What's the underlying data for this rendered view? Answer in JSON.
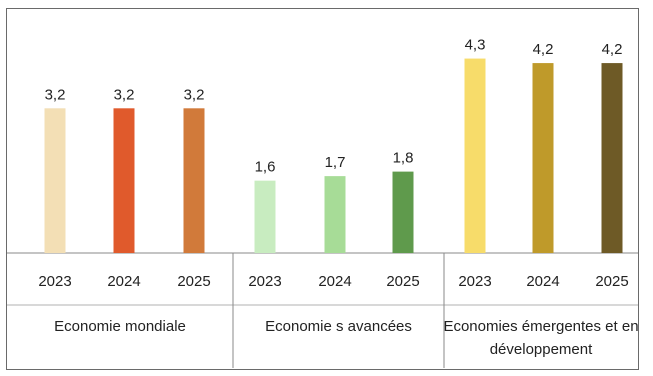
{
  "chart_data": {
    "type": "bar",
    "title": "",
    "xlabel": "",
    "ylabel": "",
    "ylim": [
      0,
      4.6
    ],
    "grid": false,
    "groups": [
      {
        "name_lines": [
          "Economie mondiale"
        ],
        "bars": [
          {
            "year": "2023",
            "value": 3.2,
            "label": "3,2",
            "color": "#f3dfb5"
          },
          {
            "year": "2024",
            "value": 3.2,
            "label": "3,2",
            "color": "#e05a2c"
          },
          {
            "year": "2025",
            "value": 3.2,
            "label": "3,2",
            "color": "#d17a3a"
          }
        ]
      },
      {
        "name_lines": [
          "Economie s avancées"
        ],
        "bars": [
          {
            "year": "2023",
            "value": 1.6,
            "label": "1,6",
            "color": "#c8ecc0"
          },
          {
            "year": "2024",
            "value": 1.7,
            "label": "1,7",
            "color": "#a7dc97"
          },
          {
            "year": "2025",
            "value": 1.8,
            "label": "1,8",
            "color": "#5f9a4c"
          }
        ]
      },
      {
        "name_lines": [
          "Economies émergentes et en",
          "développement"
        ],
        "bars": [
          {
            "year": "2023",
            "value": 4.3,
            "label": "4,3",
            "color": "#f7dc6a"
          },
          {
            "year": "2024",
            "value": 4.2,
            "label": "4,2",
            "color": "#bf9a2a"
          },
          {
            "year": "2025",
            "value": 4.2,
            "label": "4,2",
            "color": "#6e5a26"
          }
        ]
      }
    ]
  }
}
